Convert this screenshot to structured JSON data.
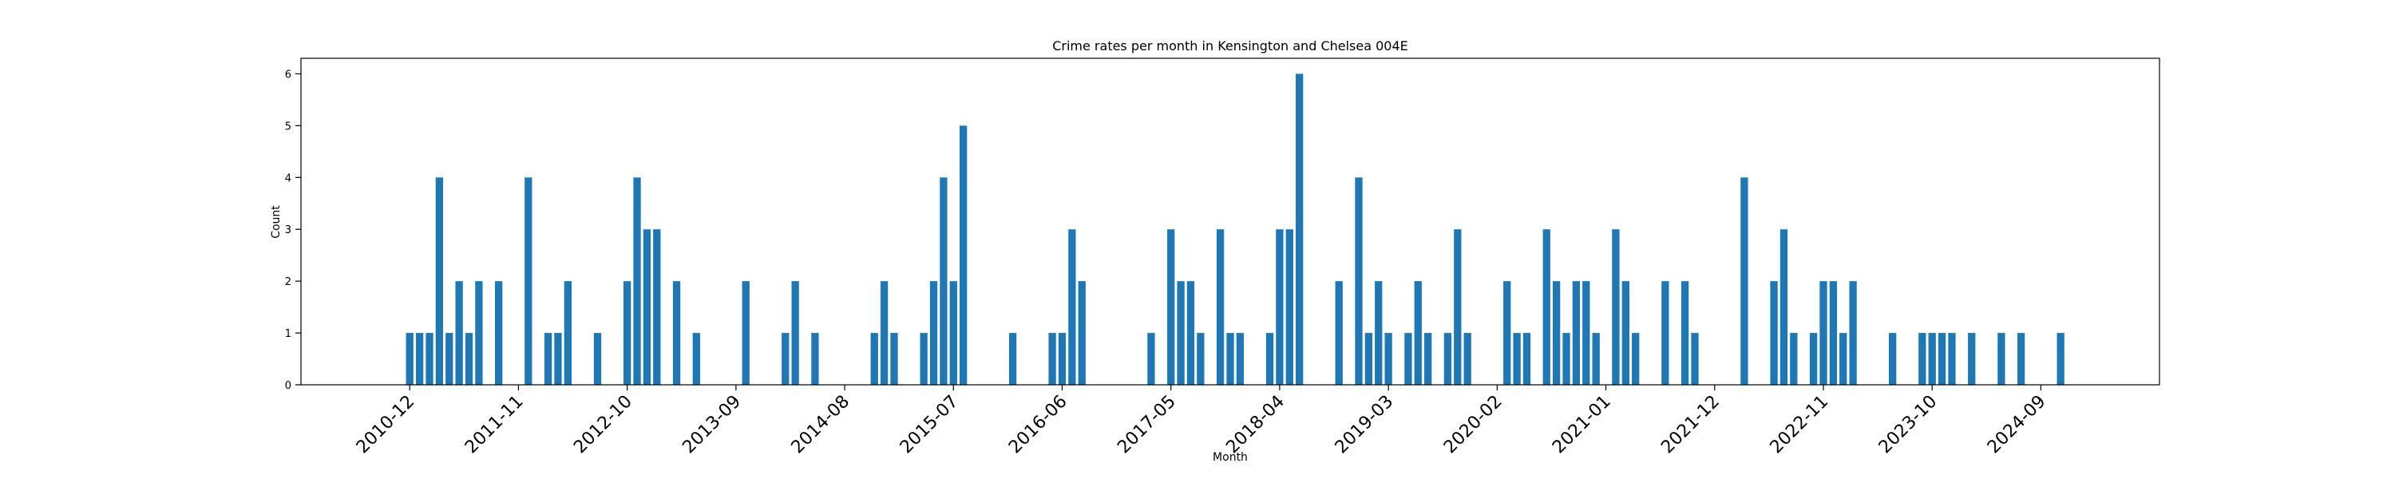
{
  "colors": {
    "bar": "#1f77b4",
    "axis": "#000000",
    "background": "#ffffff"
  },
  "chart_data": {
    "type": "bar",
    "title": "Crime rates per month in Kensington and Chelsea 004E",
    "xlabel": "Month",
    "ylabel": "Count",
    "grid": false,
    "legend": "none",
    "xlim": [
      "2010-01",
      "2025-09"
    ],
    "ylim": [
      0,
      6.3
    ],
    "yticks": [
      0,
      1,
      2,
      3,
      4,
      5,
      6
    ],
    "xticks": [
      "2010-12",
      "2011-11",
      "2012-10",
      "2013-09",
      "2014-08",
      "2015-07",
      "2016-06",
      "2017-05",
      "2018-04",
      "2019-03",
      "2020-02",
      "2021-01",
      "2021-12",
      "2022-11",
      "2023-10",
      "2024-09"
    ],
    "points": [
      [
        "2010-12",
        1
      ],
      [
        "2011-01",
        1
      ],
      [
        "2011-02",
        1
      ],
      [
        "2011-03",
        4
      ],
      [
        "2011-04",
        1
      ],
      [
        "2011-05",
        2
      ],
      [
        "2011-06",
        1
      ],
      [
        "2011-07",
        2
      ],
      [
        "2011-09",
        2
      ],
      [
        "2011-12",
        4
      ],
      [
        "2012-02",
        1
      ],
      [
        "2012-03",
        1
      ],
      [
        "2012-04",
        2
      ],
      [
        "2012-07",
        1
      ],
      [
        "2012-10",
        2
      ],
      [
        "2012-11",
        4
      ],
      [
        "2012-12",
        3
      ],
      [
        "2013-01",
        3
      ],
      [
        "2013-03",
        2
      ],
      [
        "2013-05",
        1
      ],
      [
        "2013-10",
        2
      ],
      [
        "2014-02",
        1
      ],
      [
        "2014-03",
        2
      ],
      [
        "2014-05",
        1
      ],
      [
        "2014-11",
        1
      ],
      [
        "2014-12",
        2
      ],
      [
        "2015-01",
        1
      ],
      [
        "2015-04",
        1
      ],
      [
        "2015-05",
        2
      ],
      [
        "2015-06",
        4
      ],
      [
        "2015-07",
        2
      ],
      [
        "2015-08",
        5
      ],
      [
        "2016-01",
        1
      ],
      [
        "2016-05",
        1
      ],
      [
        "2016-06",
        1
      ],
      [
        "2016-07",
        3
      ],
      [
        "2016-08",
        2
      ],
      [
        "2017-03",
        1
      ],
      [
        "2017-05",
        3
      ],
      [
        "2017-06",
        2
      ],
      [
        "2017-07",
        2
      ],
      [
        "2017-08",
        1
      ],
      [
        "2017-10",
        3
      ],
      [
        "2017-11",
        1
      ],
      [
        "2017-12",
        1
      ],
      [
        "2018-03",
        1
      ],
      [
        "2018-04",
        3
      ],
      [
        "2018-05",
        3
      ],
      [
        "2018-06",
        6
      ],
      [
        "2018-10",
        2
      ],
      [
        "2018-12",
        4
      ],
      [
        "2019-01",
        1
      ],
      [
        "2019-02",
        2
      ],
      [
        "2019-03",
        1
      ],
      [
        "2019-05",
        1
      ],
      [
        "2019-06",
        2
      ],
      [
        "2019-07",
        1
      ],
      [
        "2019-09",
        1
      ],
      [
        "2019-10",
        3
      ],
      [
        "2019-11",
        1
      ],
      [
        "2020-03",
        2
      ],
      [
        "2020-04",
        1
      ],
      [
        "2020-05",
        1
      ],
      [
        "2020-07",
        3
      ],
      [
        "2020-08",
        2
      ],
      [
        "2020-09",
        1
      ],
      [
        "2020-10",
        2
      ],
      [
        "2020-11",
        2
      ],
      [
        "2020-12",
        1
      ],
      [
        "2021-02",
        3
      ],
      [
        "2021-03",
        2
      ],
      [
        "2021-04",
        1
      ],
      [
        "2021-07",
        2
      ],
      [
        "2021-09",
        2
      ],
      [
        "2021-10",
        1
      ],
      [
        "2022-03",
        4
      ],
      [
        "2022-06",
        2
      ],
      [
        "2022-07",
        3
      ],
      [
        "2022-08",
        1
      ],
      [
        "2022-10",
        1
      ],
      [
        "2022-11",
        2
      ],
      [
        "2022-12",
        2
      ],
      [
        "2023-01",
        1
      ],
      [
        "2023-02",
        2
      ],
      [
        "2023-06",
        1
      ],
      [
        "2023-09",
        1
      ],
      [
        "2023-10",
        1
      ],
      [
        "2023-11",
        1
      ],
      [
        "2023-12",
        1
      ],
      [
        "2024-02",
        1
      ],
      [
        "2024-05",
        1
      ],
      [
        "2024-07",
        1
      ],
      [
        "2024-11",
        1
      ]
    ]
  }
}
